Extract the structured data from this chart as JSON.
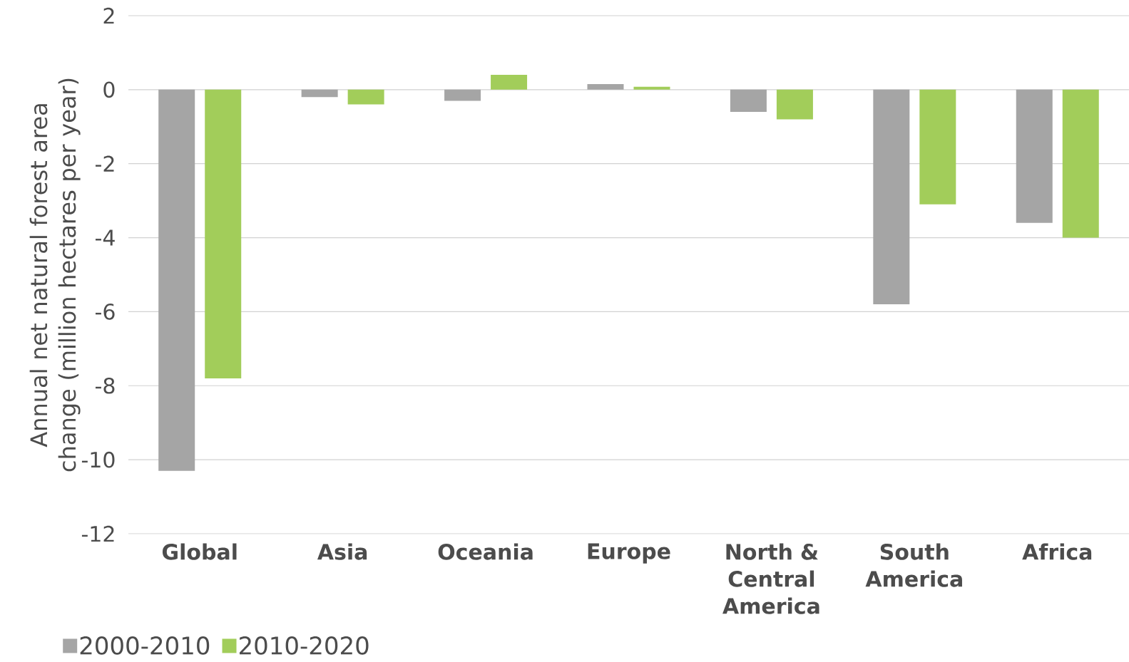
{
  "chart_data": {
    "type": "bar",
    "ylabel": "Annual net natural forest area change (million hectares per year)",
    "categories": [
      "Global",
      "Asia",
      "Oceania",
      "Europe",
      "North & Central America",
      "South America",
      "Africa"
    ],
    "series": [
      {
        "name": "2000-2010",
        "color": "#a5a5a5",
        "values": [
          -10.3,
          -0.2,
          -0.3,
          0.15,
          -0.6,
          -5.8,
          -3.6
        ]
      },
      {
        "name": "2010-2020",
        "color": "#a2cd5a",
        "values": [
          -7.8,
          -0.4,
          0.4,
          0.08,
          -0.8,
          -3.1,
          -4.0
        ]
      }
    ],
    "ylim": [
      -12,
      2
    ],
    "yticks": [
      -12,
      -10,
      -8,
      -6,
      -4,
      -2,
      0,
      2
    ],
    "grid": "y",
    "legend": "bottom left"
  }
}
